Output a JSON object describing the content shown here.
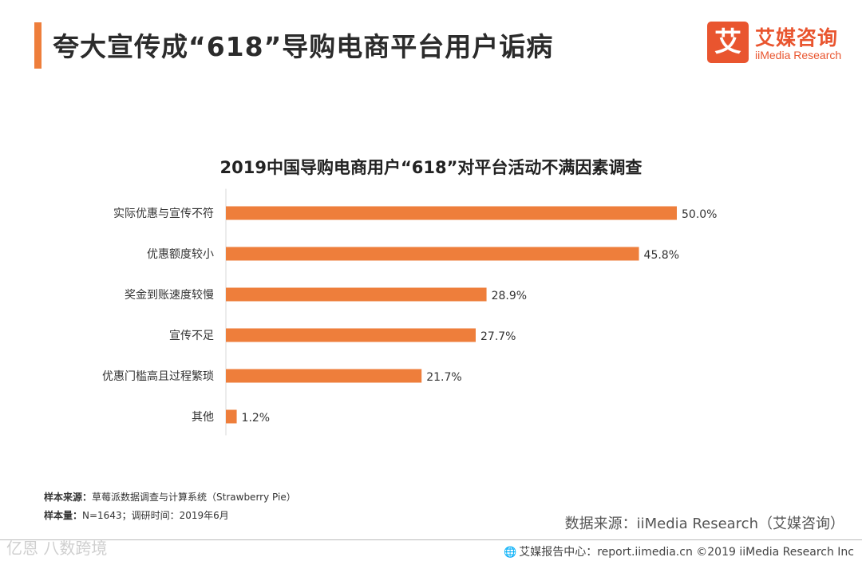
{
  "header": {
    "title": "夸大宣传成“618”导购电商平台用户诟病"
  },
  "brand": {
    "logo_char": "艾",
    "name_cn": "艾媒咨询",
    "name_en": "iiMedia Research",
    "accent_color": "#ee7e3b",
    "logo_color": "#e9552f"
  },
  "chart_data": {
    "type": "bar",
    "orientation": "horizontal",
    "title": "2019中国导购电商用户“618”对平台活动不满因素调查",
    "categories": [
      "实际优惠与宣传不符",
      "优惠额度较小",
      "奖金到账速度较慢",
      "宣传不足",
      "优惠门槛高且过程繁琐",
      "其他"
    ],
    "values": [
      50.0,
      45.8,
      28.9,
      27.7,
      21.7,
      1.2
    ],
    "value_labels": [
      "50.0%",
      "45.8%",
      "28.9%",
      "27.7%",
      "21.7%",
      "1.2%"
    ],
    "unit": "%",
    "xlim": [
      0,
      50
    ],
    "bar_color": "#ee7e3b",
    "grid": false
  },
  "footnotes": {
    "sample_source_label": "样本来源：",
    "sample_source": "草莓派数据调查与计算系统（Strawberry Pie）",
    "sample_size_label": "样本量：",
    "sample_size": "N=1643；调研时间：2019年6月"
  },
  "source": "数据来源：iiMedia Research（艾媒咨询）",
  "copyright": {
    "icon": "globe-icon",
    "text": "艾媒报告中心：report.iimedia.cn  ©2019  iiMedia Research  Inc"
  },
  "watermark": "亿恩 八数跨境"
}
